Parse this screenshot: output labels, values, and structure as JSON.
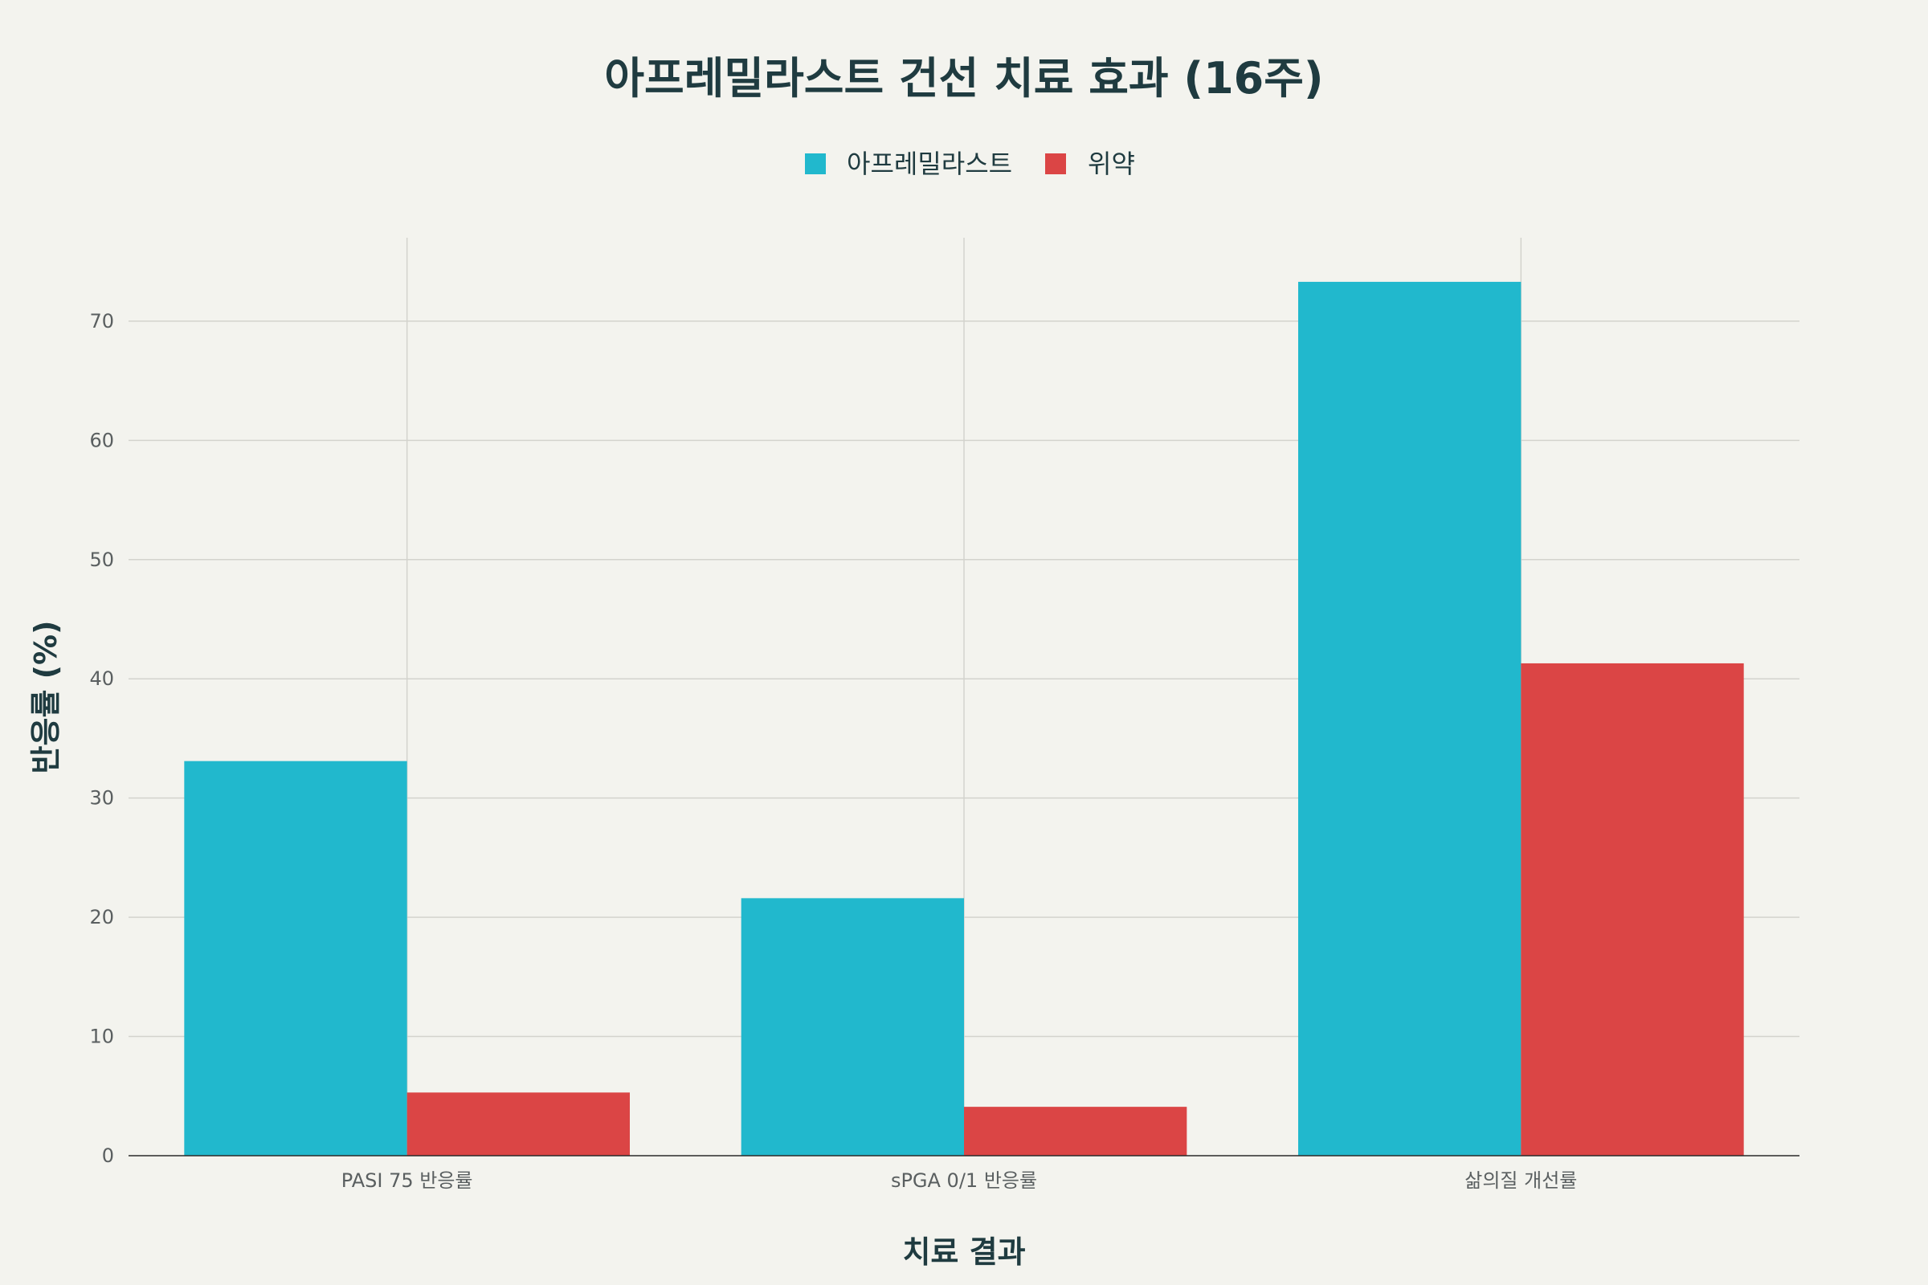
{
  "chart_data": {
    "type": "bar",
    "title": "아프레밀라스트 건선 치료 효과 (16주)",
    "xlabel": "치료 결과",
    "ylabel": "반응률 (%)",
    "categories": [
      "PASI 75 반응률",
      "sPGA 0/1 반응률",
      "삶의질 개선률"
    ],
    "series": [
      {
        "name": "아프레밀라스트",
        "color": "#21b8cd",
        "values": [
          33.1,
          21.6,
          73.3
        ]
      },
      {
        "name": "위약",
        "color": "#db4545",
        "values": [
          5.3,
          4.1,
          41.3
        ]
      }
    ],
    "ylim": [
      0,
      77
    ],
    "yticks": [
      0,
      10,
      20,
      30,
      40,
      50,
      60,
      70
    ],
    "grid": true,
    "legend_position": "top-center"
  }
}
